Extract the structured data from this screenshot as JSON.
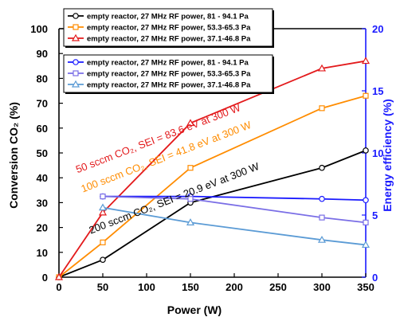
{
  "chart_data": {
    "type": "line",
    "x": [
      0,
      50,
      150,
      300,
      350
    ],
    "xlabel": "Power (W)",
    "xlim": [
      0,
      350
    ],
    "xticks": [
      "0",
      "50",
      "100",
      "150",
      "200",
      "250",
      "300",
      "350"
    ],
    "ylabel_left": "Conversion CO₂ (%)",
    "ylim_left": [
      0,
      100
    ],
    "yticks_left": [
      "0",
      "10",
      "20",
      "30",
      "40",
      "50",
      "60",
      "70",
      "80",
      "90",
      "100"
    ],
    "ylabel_right": "Energy efficiency (%)",
    "ylim_right": [
      0,
      20
    ],
    "yticks_right": [
      "0",
      "5",
      "10",
      "15",
      "20"
    ],
    "right_axis_color": "#1a1aff",
    "grid": false,
    "legend_position": "top-left",
    "series": [
      {
        "name": "empty reactor, 27 MHz RF power, 81 - 94.1 Pa",
        "axis": "left",
        "color": "#000000",
        "marker": "circle",
        "x": [
          0,
          50,
          150,
          300,
          350
        ],
        "values": [
          0,
          7,
          30,
          44,
          51
        ]
      },
      {
        "name": "empty reactor, 27 MHz RF power, 53.3-65.3 Pa",
        "axis": "left",
        "color": "#ff8c00",
        "marker": "square",
        "x": [
          0,
          50,
          150,
          300,
          350
        ],
        "values": [
          0,
          14,
          44,
          68,
          73
        ]
      },
      {
        "name": "empty reactor, 27 MHz RF power, 37.1-46.8 Pa",
        "axis": "left",
        "color": "#e31a1c",
        "marker": "triangle",
        "x": [
          0,
          50,
          150,
          300,
          350
        ],
        "values": [
          0,
          26,
          62,
          84,
          87
        ]
      },
      {
        "name": "empty reactor, 27 MHz RF power, 81 - 94.1 Pa",
        "axis": "right",
        "color": "#1a1aff",
        "marker": "circle",
        "x": [
          50,
          150,
          300,
          350
        ],
        "values": [
          6.5,
          6.5,
          6.3,
          6.2
        ]
      },
      {
        "name": "empty reactor, 27 MHz RF power, 53.3-65.3 Pa",
        "axis": "right",
        "color": "#7a6ee6",
        "marker": "square",
        "x": [
          50,
          150,
          300,
          350
        ],
        "values": [
          6.5,
          6.3,
          4.8,
          4.4
        ]
      },
      {
        "name": "empty reactor, 27 MHz RF power, 37.1-46.8 Pa",
        "axis": "right",
        "color": "#5b9bd5",
        "marker": "triangle",
        "x": [
          50,
          150,
          300,
          350
        ],
        "values": [
          5.6,
          4.4,
          3.0,
          2.6
        ]
      }
    ],
    "annotations": [
      {
        "text": "50 sccm CO₂, SEI = 83.6 eV at 300 W",
        "color": "#e31a1c"
      },
      {
        "text": "100 sccm CO₂, SEI = 41.8 eV at 300 W",
        "color": "#ff8c00"
      },
      {
        "text": "200 sccm CO₂, SEI = 20.9 eV at 300 W",
        "color": "#000000"
      }
    ]
  }
}
